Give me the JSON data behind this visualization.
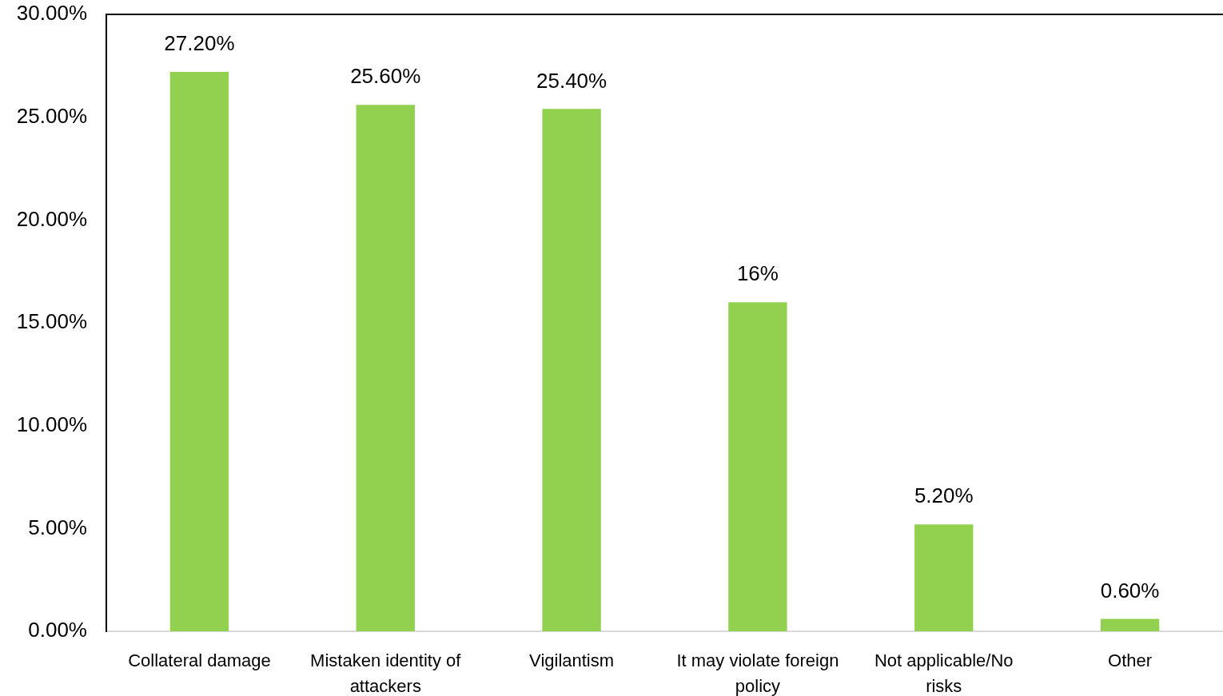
{
  "chart_data": {
    "type": "bar",
    "categories": [
      "Collateral damage",
      "Mistaken identity of attackers",
      "Vigilantism",
      "It may violate foreign policy",
      "Not applicable/No risks",
      "Other"
    ],
    "values": [
      27.2,
      25.6,
      25.4,
      16,
      5.2,
      0.6
    ],
    "value_labels": [
      "27.20%",
      "25.60%",
      "25.40%",
      "16%",
      "5.20%",
      "0.60%"
    ],
    "color": "#92d050",
    "ylim": [
      0,
      30
    ],
    "yticks": [
      {
        "value": 0,
        "label": "0.00%"
      },
      {
        "value": 5,
        "label": "5.00%"
      },
      {
        "value": 10,
        "label": "10.00%"
      },
      {
        "value": 15,
        "label": "15.00%"
      },
      {
        "value": 20,
        "label": "20.00%"
      },
      {
        "value": 25,
        "label": "25.00%"
      },
      {
        "value": 30,
        "label": "30.00%"
      }
    ]
  }
}
